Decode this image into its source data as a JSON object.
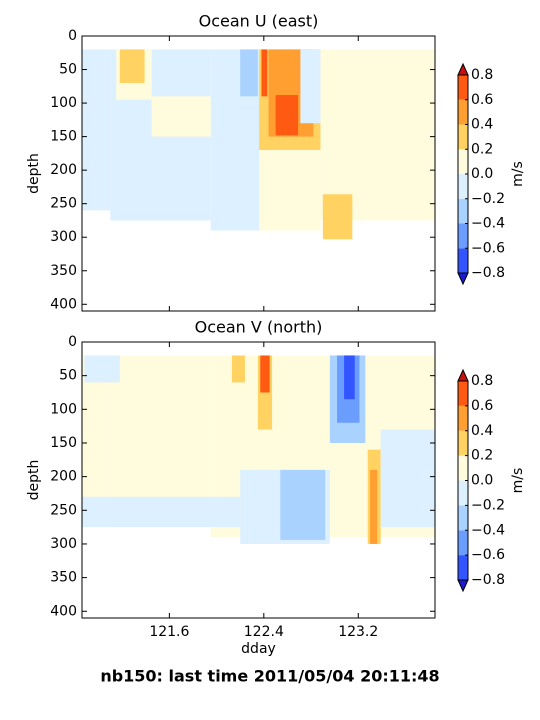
{
  "suptitle": "nb150: last time 2011/05/04 20:11:48",
  "chart_data": [
    {
      "type": "contour",
      "title": "Ocean U (east)",
      "ylabel": "depth",
      "colorbar_label": "m/s",
      "xlim": [
        120.86,
        123.85
      ],
      "ylim": [
        410,
        0
      ],
      "xticks": [
        121.6,
        122.4,
        123.2
      ],
      "yticks": [
        0,
        50,
        100,
        150,
        200,
        250,
        300,
        350,
        400
      ],
      "levels": [
        {
          "value": -0.8,
          "label": "−0.8"
        },
        {
          "value": -0.6,
          "label": "−0.6"
        },
        {
          "value": -0.4,
          "label": "−0.4"
        },
        {
          "value": -0.2,
          "label": "−0.2"
        },
        {
          "value": 0,
          "label": "0.0"
        },
        0.2,
        0.4,
        0.6,
        0.8
      ],
      "colors": [
        "#3355ff",
        "#6b9dff",
        "#a9d2ff",
        "#ddf0ff",
        "#fffbdd",
        "#ffd262",
        "#ff9f32",
        "#ff5a12"
      ],
      "under_color": "#1a1ad0",
      "over_color": "#c81010",
      "patches": [
        {
          "x": [
            120.86,
            121.1
          ],
          "depth": [
            20,
            260
          ],
          "value": -0.1
        },
        {
          "x": [
            121.1,
            121.95
          ],
          "depth": [
            20,
            275
          ],
          "value": -0.1
        },
        {
          "x": [
            121.95,
            122.39
          ],
          "depth": [
            20,
            290
          ],
          "value": -0.1
        },
        {
          "x": [
            121.15,
            121.45
          ],
          "depth": [
            20,
            95
          ],
          "value": 0.1
        },
        {
          "x": [
            121.18,
            121.39
          ],
          "depth": [
            20,
            70
          ],
          "value": 0.3
        },
        {
          "x": [
            121.45,
            121.95
          ],
          "depth": [
            90,
            150
          ],
          "value": 0.1
        },
        {
          "x": [
            122.2,
            122.35
          ],
          "depth": [
            20,
            90
          ],
          "value": -0.3
        },
        {
          "x": [
            122.36,
            122.88
          ],
          "depth": [
            20,
            290
          ],
          "value": 0.1
        },
        {
          "x": [
            122.36,
            122.88
          ],
          "depth": [
            20,
            170
          ],
          "value": 0.3
        },
        {
          "x": [
            122.44,
            122.82
          ],
          "depth": [
            20,
            150
          ],
          "value": 0.5
        },
        {
          "x": [
            122.5,
            122.69
          ],
          "depth": [
            88,
            148
          ],
          "value": 0.7
        },
        {
          "x": [
            122.38,
            122.43
          ],
          "depth": [
            20,
            90
          ],
          "value": 0.7
        },
        {
          "x": [
            122.71,
            122.88
          ],
          "depth": [
            20,
            130
          ],
          "value": -0.1
        },
        {
          "x": [
            122.88,
            123.85
          ],
          "depth": [
            20,
            275
          ],
          "value": 0.1
        },
        {
          "x": [
            122.9,
            123.15
          ],
          "depth": [
            236,
            303
          ],
          "value": 0.3
        }
      ]
    },
    {
      "type": "contour",
      "title": "Ocean V (north)",
      "ylabel": "depth",
      "xlabel": "dday",
      "colorbar_label": "m/s",
      "xlim": [
        120.86,
        123.85
      ],
      "ylim": [
        410,
        0
      ],
      "xticks": [
        121.6,
        122.4,
        123.2
      ],
      "yticks": [
        0,
        50,
        100,
        150,
        200,
        250,
        300,
        350,
        400
      ],
      "levels": [
        {
          "value": -0.8,
          "label": "−0.8"
        },
        {
          "value": -0.6,
          "label": "−0.6"
        },
        {
          "value": -0.4,
          "label": "−0.4"
        },
        {
          "value": -0.2,
          "label": "−0.2"
        },
        {
          "value": 0,
          "label": "0.0"
        },
        0.2,
        0.4,
        0.6,
        0.8
      ],
      "colors": [
        "#3355ff",
        "#6b9dff",
        "#a9d2ff",
        "#ddf0ff",
        "#fffbdd",
        "#ffd262",
        "#ff9f32",
        "#ff5a12"
      ],
      "under_color": "#1a1ad0",
      "over_color": "#c81010",
      "patches": [
        {
          "x": [
            120.86,
            121.1
          ],
          "depth": [
            20,
            260
          ],
          "value": 0.1
        },
        {
          "x": [
            121.1,
            121.95
          ],
          "depth": [
            20,
            275
          ],
          "value": 0.1
        },
        {
          "x": [
            121.95,
            123.85
          ],
          "depth": [
            20,
            290
          ],
          "value": 0.1
        },
        {
          "x": [
            120.88,
            121.18
          ],
          "depth": [
            20,
            60
          ],
          "value": -0.1
        },
        {
          "x": [
            120.86,
            122.2
          ],
          "depth": [
            230,
            275
          ],
          "value": -0.1
        },
        {
          "x": [
            122.2,
            122.96
          ],
          "depth": [
            190,
            300
          ],
          "value": -0.1
        },
        {
          "x": [
            122.54,
            122.92
          ],
          "depth": [
            190,
            294
          ],
          "value": -0.3
        },
        {
          "x": [
            122.13,
            122.24
          ],
          "depth": [
            20,
            60
          ],
          "value": 0.3
        },
        {
          "x": [
            122.35,
            122.47
          ],
          "depth": [
            20,
            130
          ],
          "value": 0.3
        },
        {
          "x": [
            122.37,
            122.45
          ],
          "depth": [
            20,
            75
          ],
          "value": 0.7
        },
        {
          "x": [
            122.96,
            123.26
          ],
          "depth": [
            20,
            150
          ],
          "value": -0.3
        },
        {
          "x": [
            123.02,
            123.21
          ],
          "depth": [
            20,
            120
          ],
          "value": -0.5
        },
        {
          "x": [
            123.08,
            123.17
          ],
          "depth": [
            20,
            85
          ],
          "value": -0.7
        },
        {
          "x": [
            123.28,
            123.39
          ],
          "depth": [
            160,
            300
          ],
          "value": 0.3
        },
        {
          "x": [
            123.3,
            123.36
          ],
          "depth": [
            190,
            300
          ],
          "value": 0.5
        },
        {
          "x": [
            123.39,
            123.85
          ],
          "depth": [
            130,
            275
          ],
          "value": -0.1
        }
      ]
    }
  ]
}
